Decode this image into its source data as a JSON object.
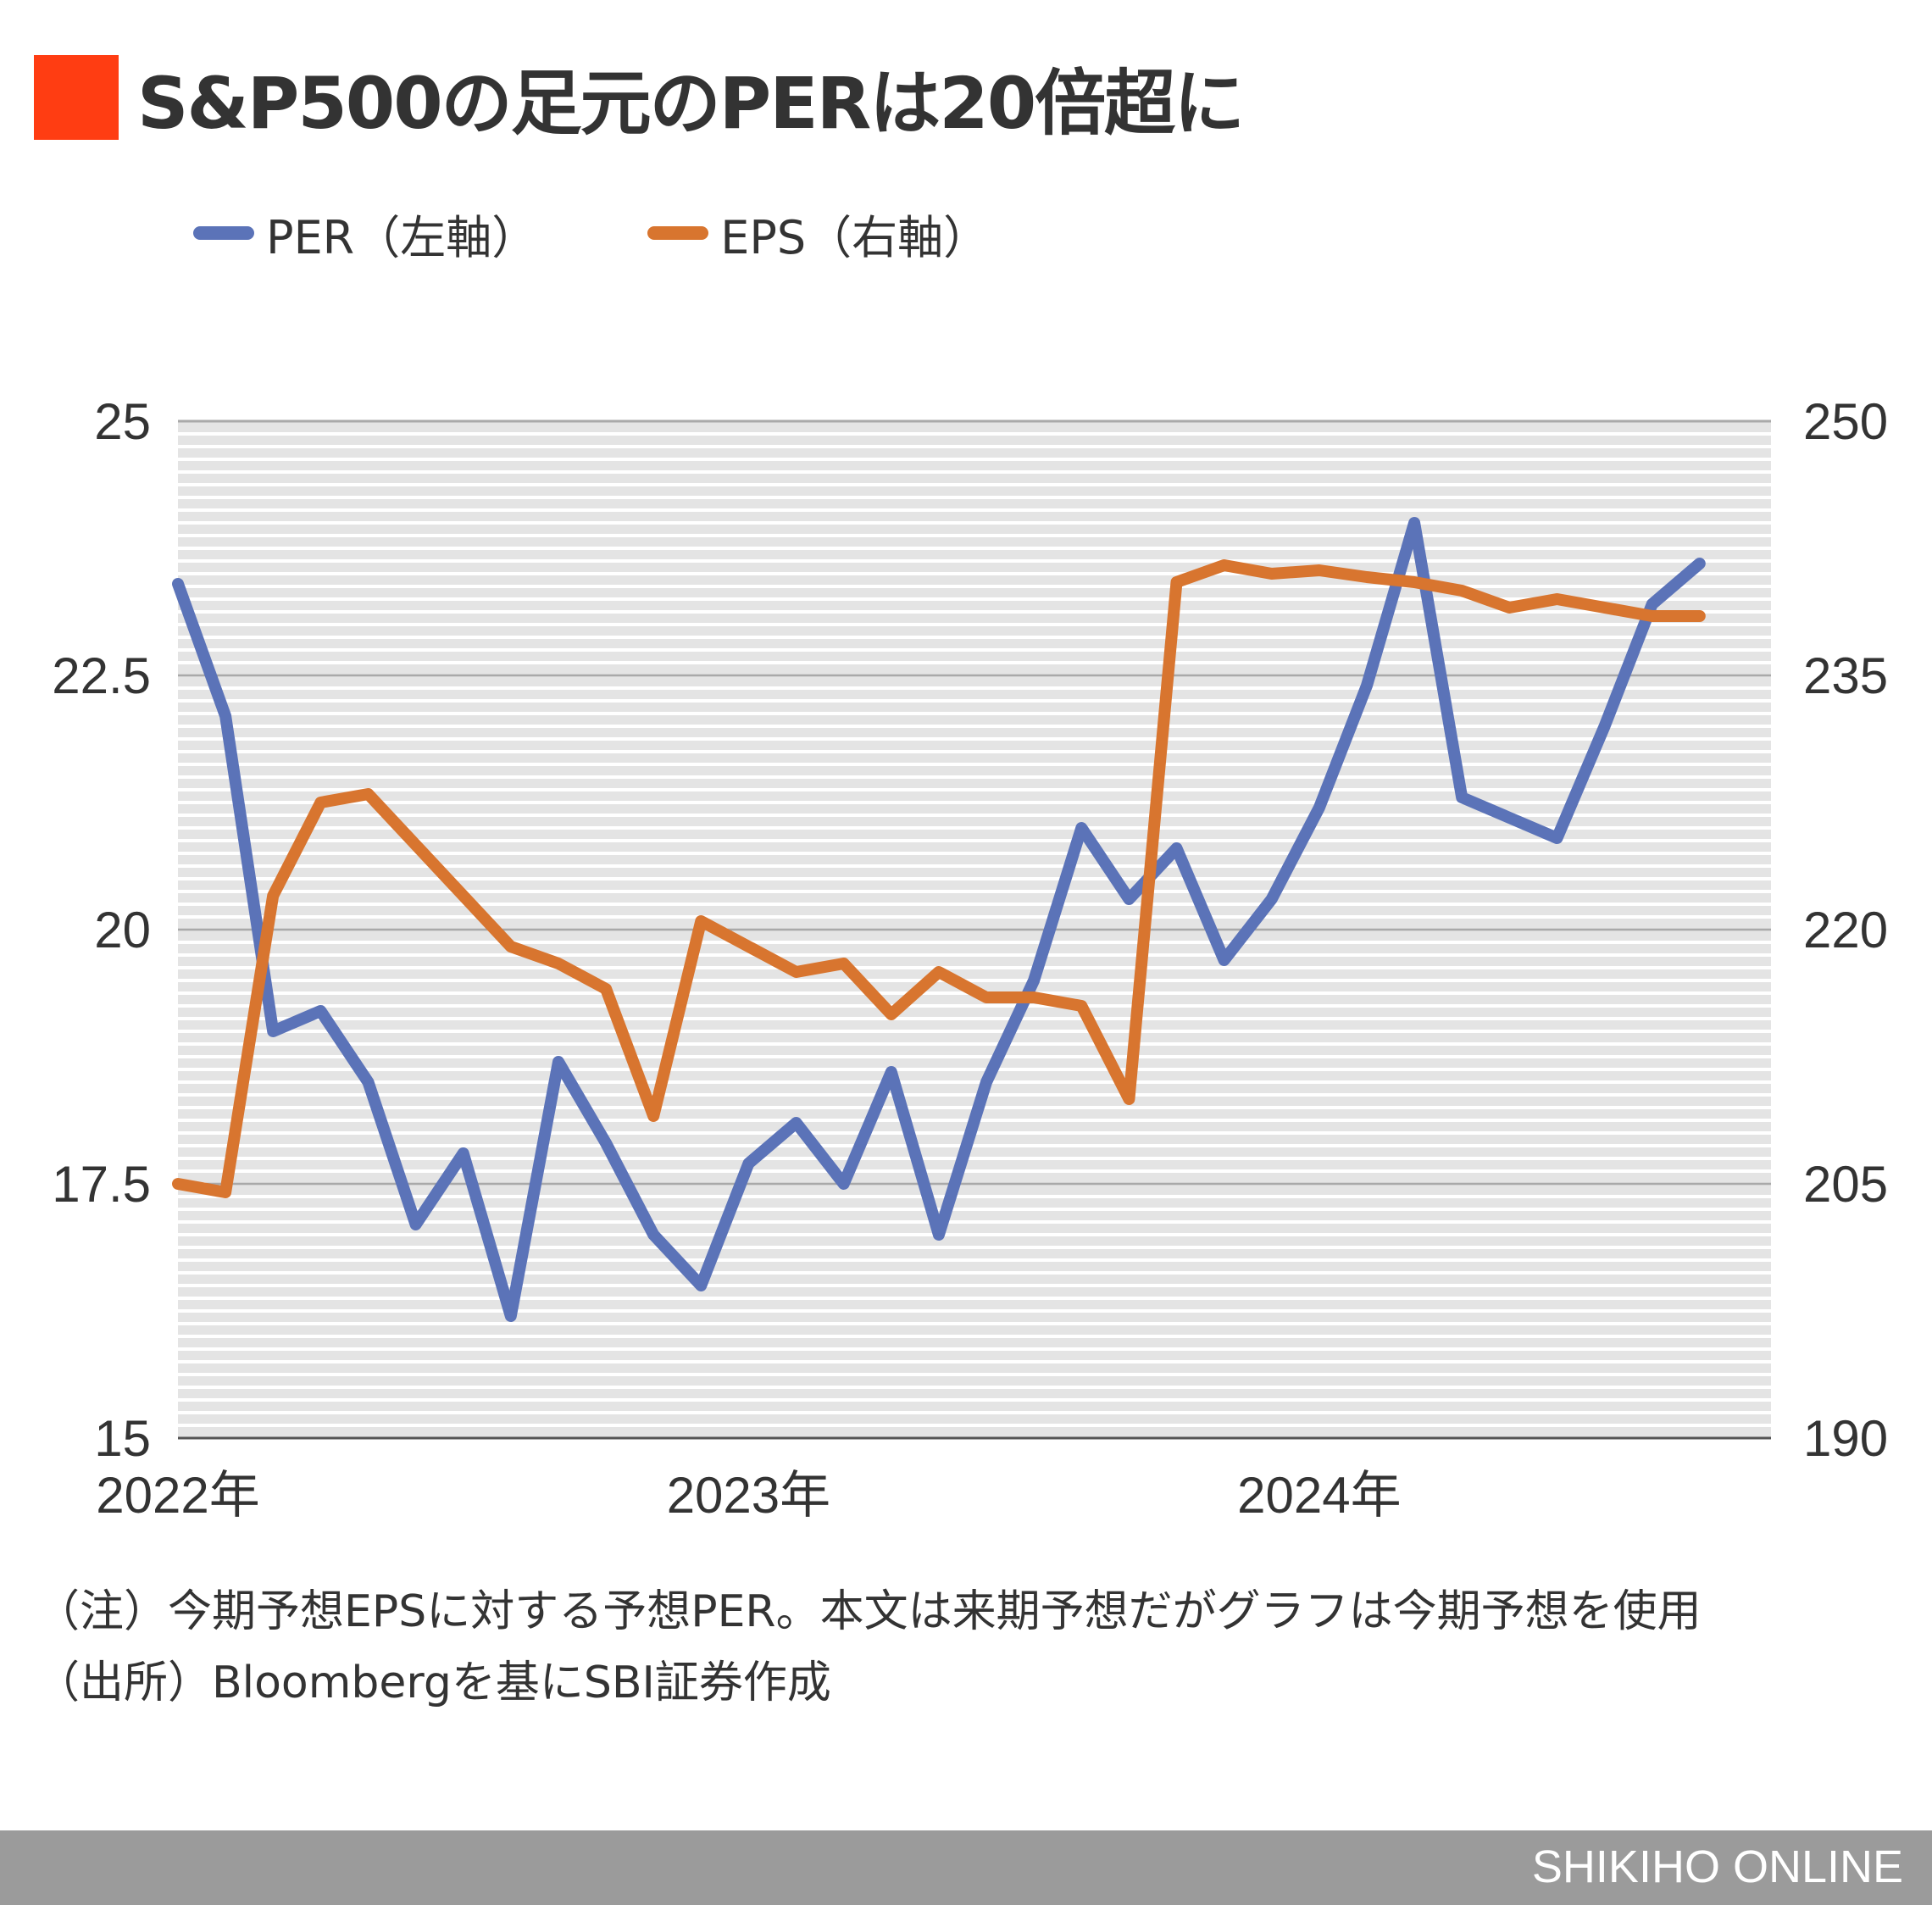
{
  "title": "S&P500の足元のPERは20倍超に",
  "colors": {
    "title_square": "#ff3d12",
    "per": "#5b73b8",
    "eps": "#d8752f",
    "footer": "#9b9b9b"
  },
  "legend": [
    {
      "label": "PER（左軸）",
      "color": "#5b73b8"
    },
    {
      "label": "EPS（右軸）",
      "color": "#d8752f"
    }
  ],
  "notes": {
    "note1": "（注）今期予想EPSに対する予想PER。本文は来期予想だがグラフは今期予想を使用",
    "note2": "（出所）Bloombergを基にSBI証券作成"
  },
  "footer": {
    "brand": "SHIKIHO ONLINE"
  },
  "chart_data": {
    "type": "line",
    "x": [
      "2022-01",
      "2022-02",
      "2022-03",
      "2022-04",
      "2022-05",
      "2022-06",
      "2022-07",
      "2022-08",
      "2022-09",
      "2022-10",
      "2022-11",
      "2022-12",
      "2023-01",
      "2023-02",
      "2023-03",
      "2023-04",
      "2023-05",
      "2023-06",
      "2023-07",
      "2023-08",
      "2023-09",
      "2023-10",
      "2023-11",
      "2023-12",
      "2024-01",
      "2024-02",
      "2024-03",
      "2024-04",
      "2024-05",
      "2024-06",
      "2024-07",
      "2024-08",
      "2024-09"
    ],
    "x_tick_labels": [
      "2022年",
      "2023年",
      "2024年"
    ],
    "series": [
      {
        "name": "PER（左軸）",
        "axis": "left",
        "values": [
          23.4,
          22.1,
          19.0,
          19.2,
          18.5,
          17.1,
          17.8,
          16.2,
          18.7,
          17.9,
          17.0,
          16.5,
          17.7,
          18.1,
          17.5,
          18.6,
          17.0,
          18.5,
          19.5,
          21.0,
          20.3,
          20.8,
          19.7,
          20.3,
          21.2,
          22.4,
          24.0,
          21.3,
          21.1,
          20.9,
          22.0,
          23.2,
          23.6
        ]
      },
      {
        "name": "EPS（右軸）",
        "axis": "right",
        "values": [
          205.0,
          204.5,
          222.0,
          227.5,
          228.0,
          225.0,
          222.0,
          219.0,
          218.0,
          216.5,
          209.0,
          220.5,
          219.0,
          217.5,
          218.0,
          215.0,
          217.5,
          216.0,
          216.0,
          215.5,
          210.0,
          240.5,
          241.5,
          241.0,
          241.2,
          240.8,
          240.5,
          240.0,
          239.0,
          239.5,
          239.0,
          238.5,
          238.5
        ]
      }
    ],
    "left_axis": {
      "ylim": [
        15,
        25
      ],
      "ticks": [
        "15",
        "17.5",
        "20",
        "22.5",
        "25"
      ]
    },
    "right_axis": {
      "ylim": [
        190,
        250
      ],
      "ticks": [
        "190",
        "205",
        "220",
        "235",
        "250"
      ]
    },
    "legend_position": "top-left",
    "grid": true
  }
}
